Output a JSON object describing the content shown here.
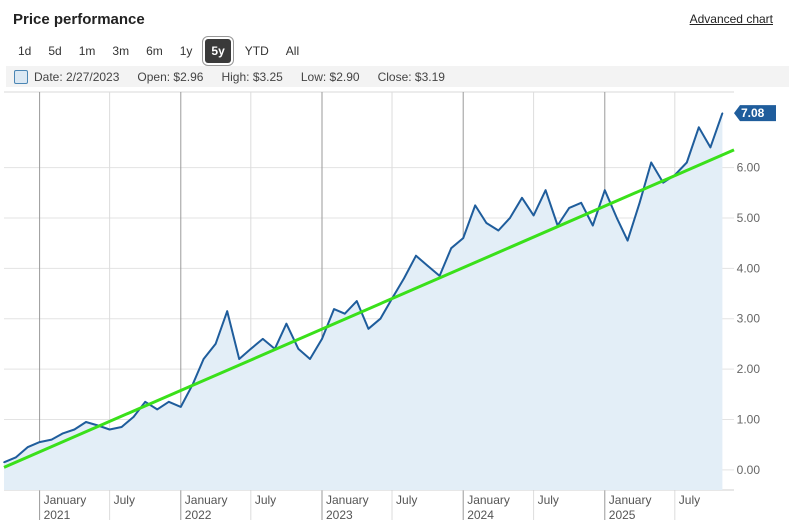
{
  "header": {
    "title": "Price performance",
    "advanced_link": "Advanced chart"
  },
  "ranges": {
    "items": [
      "1d",
      "5d",
      "1m",
      "3m",
      "6m",
      "1y",
      "5y",
      "YTD",
      "All"
    ],
    "selected": "5y"
  },
  "infobar": {
    "date": "Date: 2/27/2023",
    "open": "Open: $2.96",
    "high": "High: $3.25",
    "low": "Low: $2.90",
    "close": "Close: $3.19"
  },
  "chart_data": {
    "type": "area",
    "series": [
      {
        "values": [
          [
            "2020-10-01",
            0.15
          ],
          [
            "2020-11-01",
            0.25
          ],
          [
            "2020-12-01",
            0.45
          ],
          [
            "2021-01-01",
            0.55
          ],
          [
            "2021-02-01",
            0.6
          ],
          [
            "2021-03-01",
            0.72
          ],
          [
            "2021-04-01",
            0.8
          ],
          [
            "2021-05-01",
            0.95
          ],
          [
            "2021-06-01",
            0.88
          ],
          [
            "2021-07-01",
            0.8
          ],
          [
            "2021-08-01",
            0.85
          ],
          [
            "2021-09-01",
            1.05
          ],
          [
            "2021-10-01",
            1.35
          ],
          [
            "2021-11-01",
            1.2
          ],
          [
            "2021-12-01",
            1.35
          ],
          [
            "2022-01-01",
            1.25
          ],
          [
            "2022-02-01",
            1.7
          ],
          [
            "2022-03-01",
            2.2
          ],
          [
            "2022-04-01",
            2.5
          ],
          [
            "2022-05-01",
            3.15
          ],
          [
            "2022-06-01",
            2.2
          ],
          [
            "2022-07-01",
            2.4
          ],
          [
            "2022-08-01",
            2.6
          ],
          [
            "2022-09-01",
            2.4
          ],
          [
            "2022-10-01",
            2.9
          ],
          [
            "2022-11-01",
            2.4
          ],
          [
            "2022-12-01",
            2.2
          ],
          [
            "2023-01-01",
            2.6
          ],
          [
            "2023-02-01",
            3.19
          ],
          [
            "2023-03-01",
            3.1
          ],
          [
            "2023-04-01",
            3.35
          ],
          [
            "2023-05-01",
            2.8
          ],
          [
            "2023-06-01",
            3.0
          ],
          [
            "2023-07-01",
            3.4
          ],
          [
            "2023-08-01",
            3.8
          ],
          [
            "2023-09-01",
            4.25
          ],
          [
            "2023-10-01",
            4.05
          ],
          [
            "2023-11-01",
            3.85
          ],
          [
            "2023-12-01",
            4.4
          ],
          [
            "2024-01-01",
            4.6
          ],
          [
            "2024-02-01",
            5.25
          ],
          [
            "2024-03-01",
            4.9
          ],
          [
            "2024-04-01",
            4.75
          ],
          [
            "2024-05-01",
            5.0
          ],
          [
            "2024-06-01",
            5.4
          ],
          [
            "2024-07-01",
            5.05
          ],
          [
            "2024-08-01",
            5.55
          ],
          [
            "2024-09-01",
            4.85
          ],
          [
            "2024-10-01",
            5.2
          ],
          [
            "2024-11-01",
            5.3
          ],
          [
            "2024-12-01",
            4.85
          ],
          [
            "2025-01-01",
            5.55
          ],
          [
            "2025-02-01",
            5.0
          ],
          [
            "2025-03-01",
            4.55
          ],
          [
            "2025-04-01",
            5.3
          ],
          [
            "2025-05-01",
            6.1
          ],
          [
            "2025-06-01",
            5.7
          ],
          [
            "2025-07-01",
            5.85
          ],
          [
            "2025-08-01",
            6.1
          ],
          [
            "2025-09-01",
            6.8
          ],
          [
            "2025-10-01",
            6.4
          ],
          [
            "2025-11-01",
            7.08
          ]
        ],
        "color": "#1f5d9c",
        "fill": "#e3eef7"
      }
    ],
    "trendline": {
      "start": [
        "2020-10-01",
        0.05
      ],
      "end": [
        "2025-12-01",
        6.35
      ],
      "color": "#3ae01a"
    },
    "last_value_label": "7.08",
    "last_value_color": "#1f5d9c",
    "y_ticks": [
      "0.00",
      "1.00",
      "2.00",
      "3.00",
      "4.00",
      "5.00",
      "6.00"
    ],
    "ylim": [
      -0.4,
      7.5
    ],
    "x_ticks": [
      {
        "date": "2021-01-01",
        "label": "January",
        "year": "2021",
        "major": true
      },
      {
        "date": "2021-07-01",
        "label": "July",
        "year": "",
        "major": false
      },
      {
        "date": "2022-01-01",
        "label": "January",
        "year": "2022",
        "major": true
      },
      {
        "date": "2022-07-01",
        "label": "July",
        "year": "",
        "major": false
      },
      {
        "date": "2023-01-01",
        "label": "January",
        "year": "2023",
        "major": true
      },
      {
        "date": "2023-07-01",
        "label": "July",
        "year": "",
        "major": false
      },
      {
        "date": "2024-01-01",
        "label": "January",
        "year": "2024",
        "major": true
      },
      {
        "date": "2024-07-01",
        "label": "July",
        "year": "",
        "major": false
      },
      {
        "date": "2025-01-01",
        "label": "January",
        "year": "2025",
        "major": true
      },
      {
        "date": "2025-07-01",
        "label": "July",
        "year": "",
        "major": false
      }
    ],
    "xlim": [
      "2020-10-01",
      "2025-12-01"
    ],
    "grid": true
  }
}
